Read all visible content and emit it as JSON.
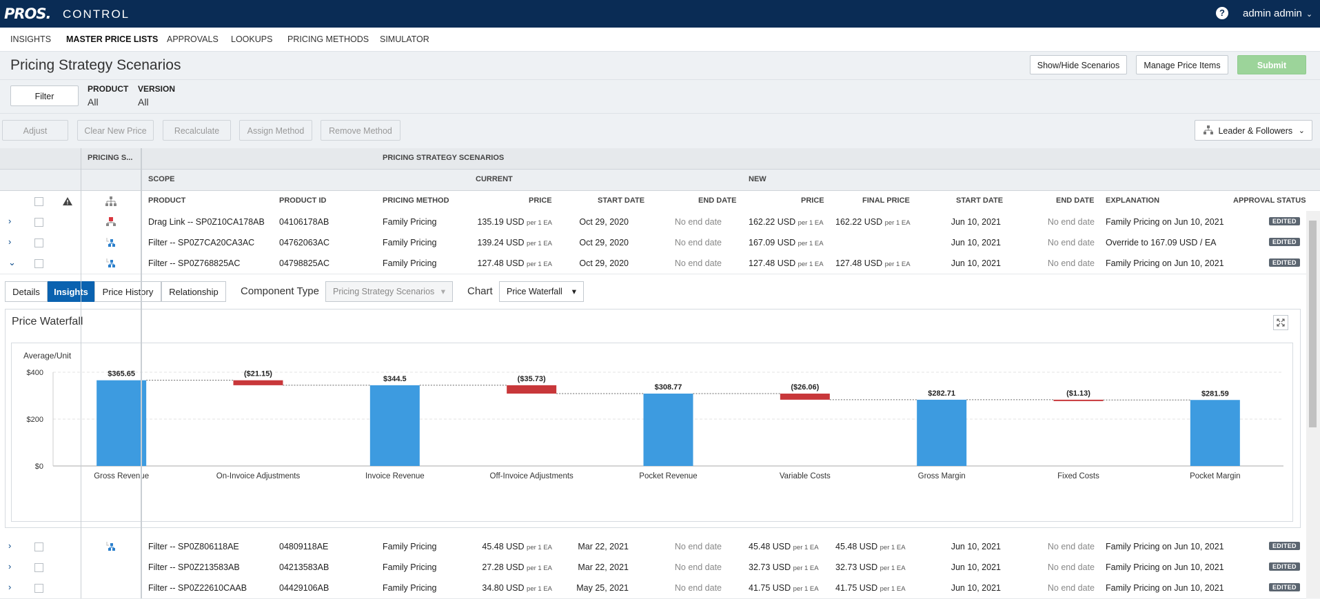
{
  "app": {
    "logo": "PROS.",
    "title": "CONTROL",
    "help_icon": "?",
    "user": "admin admin",
    "user_chevron": "⌄"
  },
  "nav": [
    "INSIGHTS",
    "MASTER PRICE LISTS",
    "APPROVALS",
    "LOOKUPS",
    "PRICING METHODS",
    "SIMULATOR"
  ],
  "page": {
    "title": "Pricing Strategy Scenarios",
    "buttons": {
      "show_hide": "Show/Hide Scenarios",
      "manage": "Manage Price Items",
      "submit": "Submit"
    }
  },
  "filter": {
    "button": "Filter",
    "product_label": "PRODUCT",
    "product_value": "All",
    "version_label": "VERSION",
    "version_value": "All"
  },
  "actions": {
    "adjust": "Adjust",
    "clear": "Clear New Price",
    "recalc": "Recalculate",
    "assign": "Assign Method",
    "remove": "Remove Method",
    "view": "Leader & Followers"
  },
  "grid": {
    "group1": "PRICING S...",
    "group2": "PRICING STRATEGY SCENARIOS",
    "scope": "SCOPE",
    "current": "CURRENT",
    "new": "NEW",
    "columns": {
      "product": "PRODUCT",
      "product_id": "PRODUCT ID",
      "method": "PRICING METHOD",
      "price": "PRICE",
      "start": "START DATE",
      "end": "END DATE",
      "new_price": "PRICE",
      "final": "FINAL PRICE",
      "new_start": "START DATE",
      "new_end": "END DATE",
      "explanation": "EXPLANATION",
      "approval": "APPROVAL STATUS"
    },
    "unit": "per 1 EA",
    "rows": [
      {
        "chev": "›",
        "product": "Drag Link -- SP0Z10CA178AB",
        "id": "04106178AB",
        "method": "Family Pricing",
        "price": "135.19 USD",
        "start": "Oct 29, 2020",
        "end": "No end date",
        "new_price": "162.22 USD",
        "final": "162.22 USD",
        "new_start": "Jun 10, 2021",
        "new_end": "No end date",
        "explanation": "Family Pricing on Jun 10, 2021",
        "status": "EDITED"
      },
      {
        "chev": "›",
        "product": "Filter -- SP0Z7CA20CA3AC",
        "id": "04762063AC",
        "method": "Family Pricing",
        "price": "139.24 USD",
        "start": "Oct 29, 2020",
        "end": "No end date",
        "new_price": "167.09 USD",
        "final": "",
        "new_start": "Jun 10, 2021",
        "new_end": "No end date",
        "explanation": "Override to 167.09 USD / EA",
        "status": "EDITED"
      },
      {
        "chev": "⌄",
        "product": "Filter -- SP0Z768825AC",
        "id": "04798825AC",
        "method": "Family Pricing",
        "price": "127.48 USD",
        "start": "Oct 29, 2020",
        "end": "No end date",
        "new_price": "127.48 USD",
        "final": "127.48 USD",
        "new_start": "Jun 10, 2021",
        "new_end": "No end date",
        "explanation": "Family Pricing on Jun 10, 2021",
        "status": "EDITED"
      },
      {
        "chev": "›",
        "product": "Filter -- SP0Z806118AE",
        "id": "04809118AE",
        "method": "Family Pricing",
        "price": "45.48 USD",
        "start": "Mar 22, 2021",
        "end": "No end date",
        "new_price": "45.48 USD",
        "final": "45.48 USD",
        "new_start": "Jun 10, 2021",
        "new_end": "No end date",
        "explanation": "Family Pricing on Jun 10, 2021",
        "status": "EDITED"
      },
      {
        "chev": "›",
        "product": "Filter -- SP0Z213583AB",
        "id": "04213583AB",
        "method": "Family Pricing",
        "price": "27.28 USD",
        "start": "Mar 22, 2021",
        "end": "No end date",
        "new_price": "32.73 USD",
        "final": "32.73 USD",
        "new_start": "Jun 10, 2021",
        "new_end": "No end date",
        "explanation": "Family Pricing on Jun 10, 2021",
        "status": "EDITED"
      },
      {
        "chev": "›",
        "product": "Filter -- SP0Z22610CAAB",
        "id": "04429106AB",
        "method": "Family Pricing",
        "price": "34.80 USD",
        "start": "May 25, 2021",
        "end": "No end date",
        "new_price": "41.75 USD",
        "final": "41.75 USD",
        "new_start": "Jun 10, 2021",
        "new_end": "No end date",
        "explanation": "Family Pricing on Jun 10, 2021",
        "status": "EDITED"
      }
    ]
  },
  "detail": {
    "tabs": [
      "Details",
      "Insights",
      "Price History",
      "Relationship"
    ],
    "component_label": "Component Type",
    "component_value": "Pricing Strategy Scenarios",
    "chart_label": "Chart",
    "chart_value": "Price Waterfall",
    "panel_title": "Price Waterfall"
  },
  "colors": {
    "increase": "#3d9be0",
    "decrease": "#c8373a",
    "header": "#0a2c55"
  },
  "chart_data": {
    "type": "bar",
    "ylabel": "Average/Unit",
    "ylim": [
      0,
      400
    ],
    "yticks": [
      "$0",
      "$200",
      "$400"
    ],
    "ytick_values": [
      0,
      200,
      400
    ],
    "categories": [
      "Gross Revenue",
      "On-Invoice Adjustments",
      "Invoice Revenue",
      "Off-Invoice Adjustments",
      "Pocket Revenue",
      "Variable Costs",
      "Gross Margin",
      "Fixed Costs",
      "Pocket Margin"
    ],
    "values": [
      365.65,
      -21.15,
      344.5,
      -35.73,
      308.77,
      -26.06,
      282.71,
      -1.13,
      281.59
    ],
    "kinds": [
      "total",
      "delta",
      "total",
      "delta",
      "total",
      "delta",
      "total",
      "delta",
      "total"
    ],
    "labels": [
      "$365.65",
      "($21.15)",
      "$344.5",
      "($35.73)",
      "$308.77",
      "($26.06)",
      "$282.71",
      "($1.13)",
      "$281.59"
    ]
  }
}
